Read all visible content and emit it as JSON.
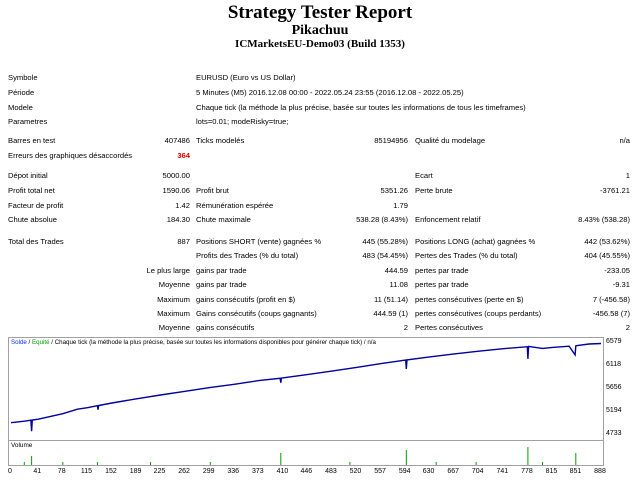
{
  "header": {
    "title": "Strategy Tester Report",
    "expert": "Pikachuu",
    "server": "ICMarketsEU-Demo03 (Build 1353)"
  },
  "info": [
    {
      "label": "Symbole",
      "value": "EURUSD (Euro vs US Dollar)"
    },
    {
      "label": "Période",
      "value": "5 Minutes (M5) 2016.12.08 00:00 - 2022.05.24 23:55 (2016.12.08 - 2022.05.25)"
    },
    {
      "label": "Modele",
      "value": "Chaque tick (la méthode la plus précise, basée sur toutes les informations de tous les timeframes)"
    },
    {
      "label": "Parametres",
      "value": "lots=0.01; modeRisky=true;"
    }
  ],
  "bars": {
    "bars_label": "Barres en test",
    "bars_value": "407486",
    "ticks_label": "Ticks modelés",
    "ticks_value": "85194956",
    "quality_label": "Qualité du modelage",
    "quality_value": "n/a",
    "errors_label": "Erreurs des graphiques désaccordés",
    "errors_value": "364"
  },
  "results": {
    "deposit_label": "Dépot initial",
    "deposit_value": "5000.00",
    "spread_label": "Ecart",
    "spread_value": "1",
    "net_label": "Profit total net",
    "net_value": "1590.06",
    "gross_profit_label": "Profit brut",
    "gross_profit_value": "5351.26",
    "gross_loss_label": "Perte brute",
    "gross_loss_value": "-3761.21",
    "pf_label": "Facteur de profit",
    "pf_value": "1.42",
    "payoff_label": "Rémunération espérée",
    "payoff_value": "1.79",
    "abs_dd_label": "Chute absolue",
    "abs_dd_value": "184.30",
    "max_dd_label": "Chute maximale",
    "max_dd_value": "538.28 (8.43%)",
    "rel_dd_label": "Enfoncement relatif",
    "rel_dd_value": "8.43% (538.28)"
  },
  "trades": {
    "total_label": "Total des Trades",
    "total_value": "887",
    "short_label": "Positions SHORT (vente) gagnées %",
    "short_value": "445 (55.28%)",
    "long_label": "Positions LONG (achat) gagnées %",
    "long_value": "442 (53.62%)",
    "profit_trades_label": "Profits des Trades (% du total)",
    "profit_trades_value": "483 (54.45%)",
    "loss_trades_label": "Pertes des Trades (% du total)",
    "loss_trades_value": "404 (45.55%)",
    "rows": [
      {
        "prefix": "Le plus large",
        "l_label": "gains par trade",
        "l_value": "444.59",
        "r_label": "pertes par trade",
        "r_value": "-233.05"
      },
      {
        "prefix": "Moyenne",
        "l_label": "gains par trade",
        "l_value": "11.08",
        "r_label": "pertes par trade",
        "r_value": "-9.31"
      },
      {
        "prefix": "Maximum",
        "l_label": "gains consécutifs (profit en $)",
        "l_value": "11 (51.14)",
        "r_label": "pertes consécutives (perte en $)",
        "r_value": "7 (-456.58)"
      },
      {
        "prefix": "Maximum",
        "l_label": "Gains consécutifs (coups gagnants)",
        "l_value": "444.59 (1)",
        "r_label": "pertes consécutives (coups perdants)",
        "r_value": "-456.58 (7)"
      },
      {
        "prefix": "Moyenne",
        "l_label": "gains consécutifs",
        "l_value": "2",
        "r_label": "Pertes consécutives",
        "r_value": "2"
      }
    ]
  },
  "chart": {
    "legend_balance": "Solde",
    "legend_sep1": " / ",
    "legend_equity": "Equité",
    "legend_rest": " / Chaque tick (la méthode la plus précise, basée sur toutes les informations disponibles pour générer chaque tick) / n/a",
    "volume_label": "Volume",
    "colors": {
      "balance": "#0000a0",
      "volume": "#00a000",
      "equity": "#00a000"
    }
  },
  "chart_data": {
    "type": "line",
    "ylim": [
      4733,
      6579
    ],
    "yticks": [
      "6579",
      "6118",
      "5656",
      "5194",
      "4733"
    ],
    "xlim": [
      0,
      888
    ],
    "xticks": [
      "0",
      "41",
      "78",
      "115",
      "152",
      "189",
      "225",
      "262",
      "299",
      "336",
      "373",
      "410",
      "446",
      "483",
      "520",
      "557",
      "594",
      "630",
      "667",
      "704",
      "741",
      "778",
      "815",
      "851",
      "888"
    ],
    "series": [
      {
        "x": [
          0,
          20,
          30,
          31,
          32,
          41,
          78,
          100,
          115,
          130,
          131,
          132,
          152,
          189,
          225,
          262,
          299,
          336,
          373,
          405,
          406,
          407,
          410,
          446,
          483,
          520,
          557,
          594,
          595,
          596,
          630,
          667,
          704,
          741,
          777,
          778,
          779,
          800,
          815,
          840,
          849,
          850,
          851,
          870,
          888
        ],
        "y": [
          5000,
          5030,
          5050,
          4830,
          5055,
          5070,
          5180,
          5270,
          5300,
          5340,
          5260,
          5345,
          5395,
          5480,
          5555,
          5630,
          5705,
          5770,
          5845,
          5890,
          5800,
          5895,
          5900,
          5965,
          6035,
          6110,
          6185,
          6255,
          6080,
          6260,
          6320,
          6380,
          6435,
          6485,
          6525,
          6280,
          6530,
          6490,
          6510,
          6535,
          6360,
          6540,
          6545,
          6580,
          6590
        ]
      }
    ],
    "volume": {
      "x": [
        20,
        31,
        78,
        130,
        210,
        300,
        406,
        510,
        595,
        640,
        700,
        778,
        800,
        850
      ],
      "y": [
        1,
        3,
        1,
        1,
        1,
        1,
        4,
        1,
        5,
        1,
        1,
        6,
        1,
        4
      ]
    }
  }
}
